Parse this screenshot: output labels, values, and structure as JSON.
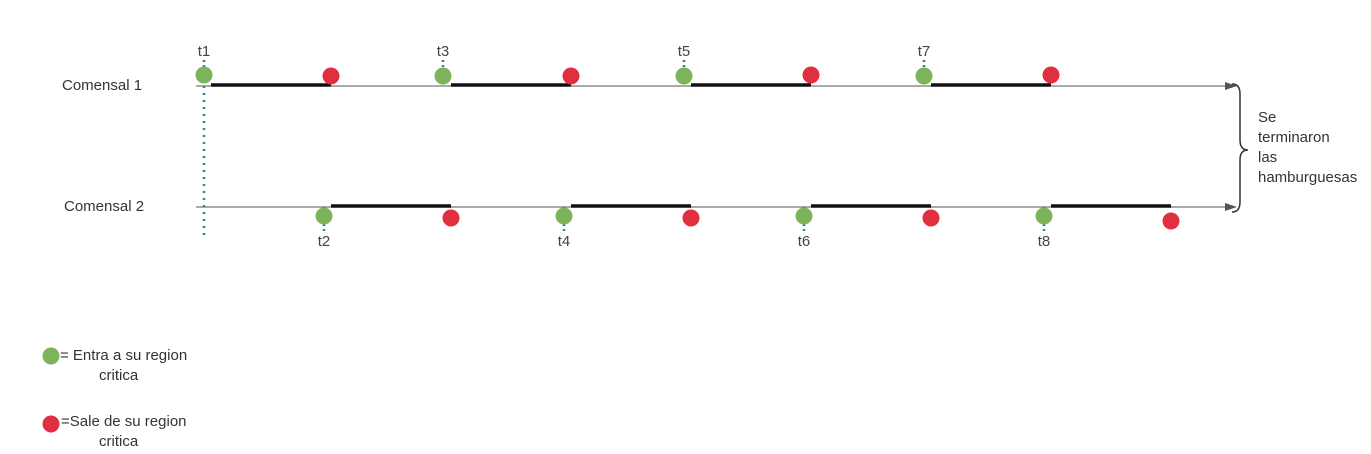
{
  "colors": {
    "enter": "#7db35a",
    "exit": "#e0303f",
    "axis": "#555555",
    "segment": "#111111",
    "tick": "#2c8a84"
  },
  "rows": [
    {
      "label": "Comensal 1",
      "events": [
        {
          "label": "t1"
        },
        {
          "label": "t3"
        },
        {
          "label": "t5"
        },
        {
          "label": "t7"
        }
      ]
    },
    {
      "label": "Comensal 2",
      "events": [
        {
          "label": "t2"
        },
        {
          "label": "t4"
        },
        {
          "label": "t6"
        },
        {
          "label": "t8"
        }
      ]
    }
  ],
  "brace_note": [
    "Se",
    "terminaron",
    "las",
    "hamburguesas"
  ],
  "legend": {
    "enter": [
      "= Entra a su region",
      "critica"
    ],
    "exit": [
      "=Sale de su region",
      "critica"
    ]
  }
}
